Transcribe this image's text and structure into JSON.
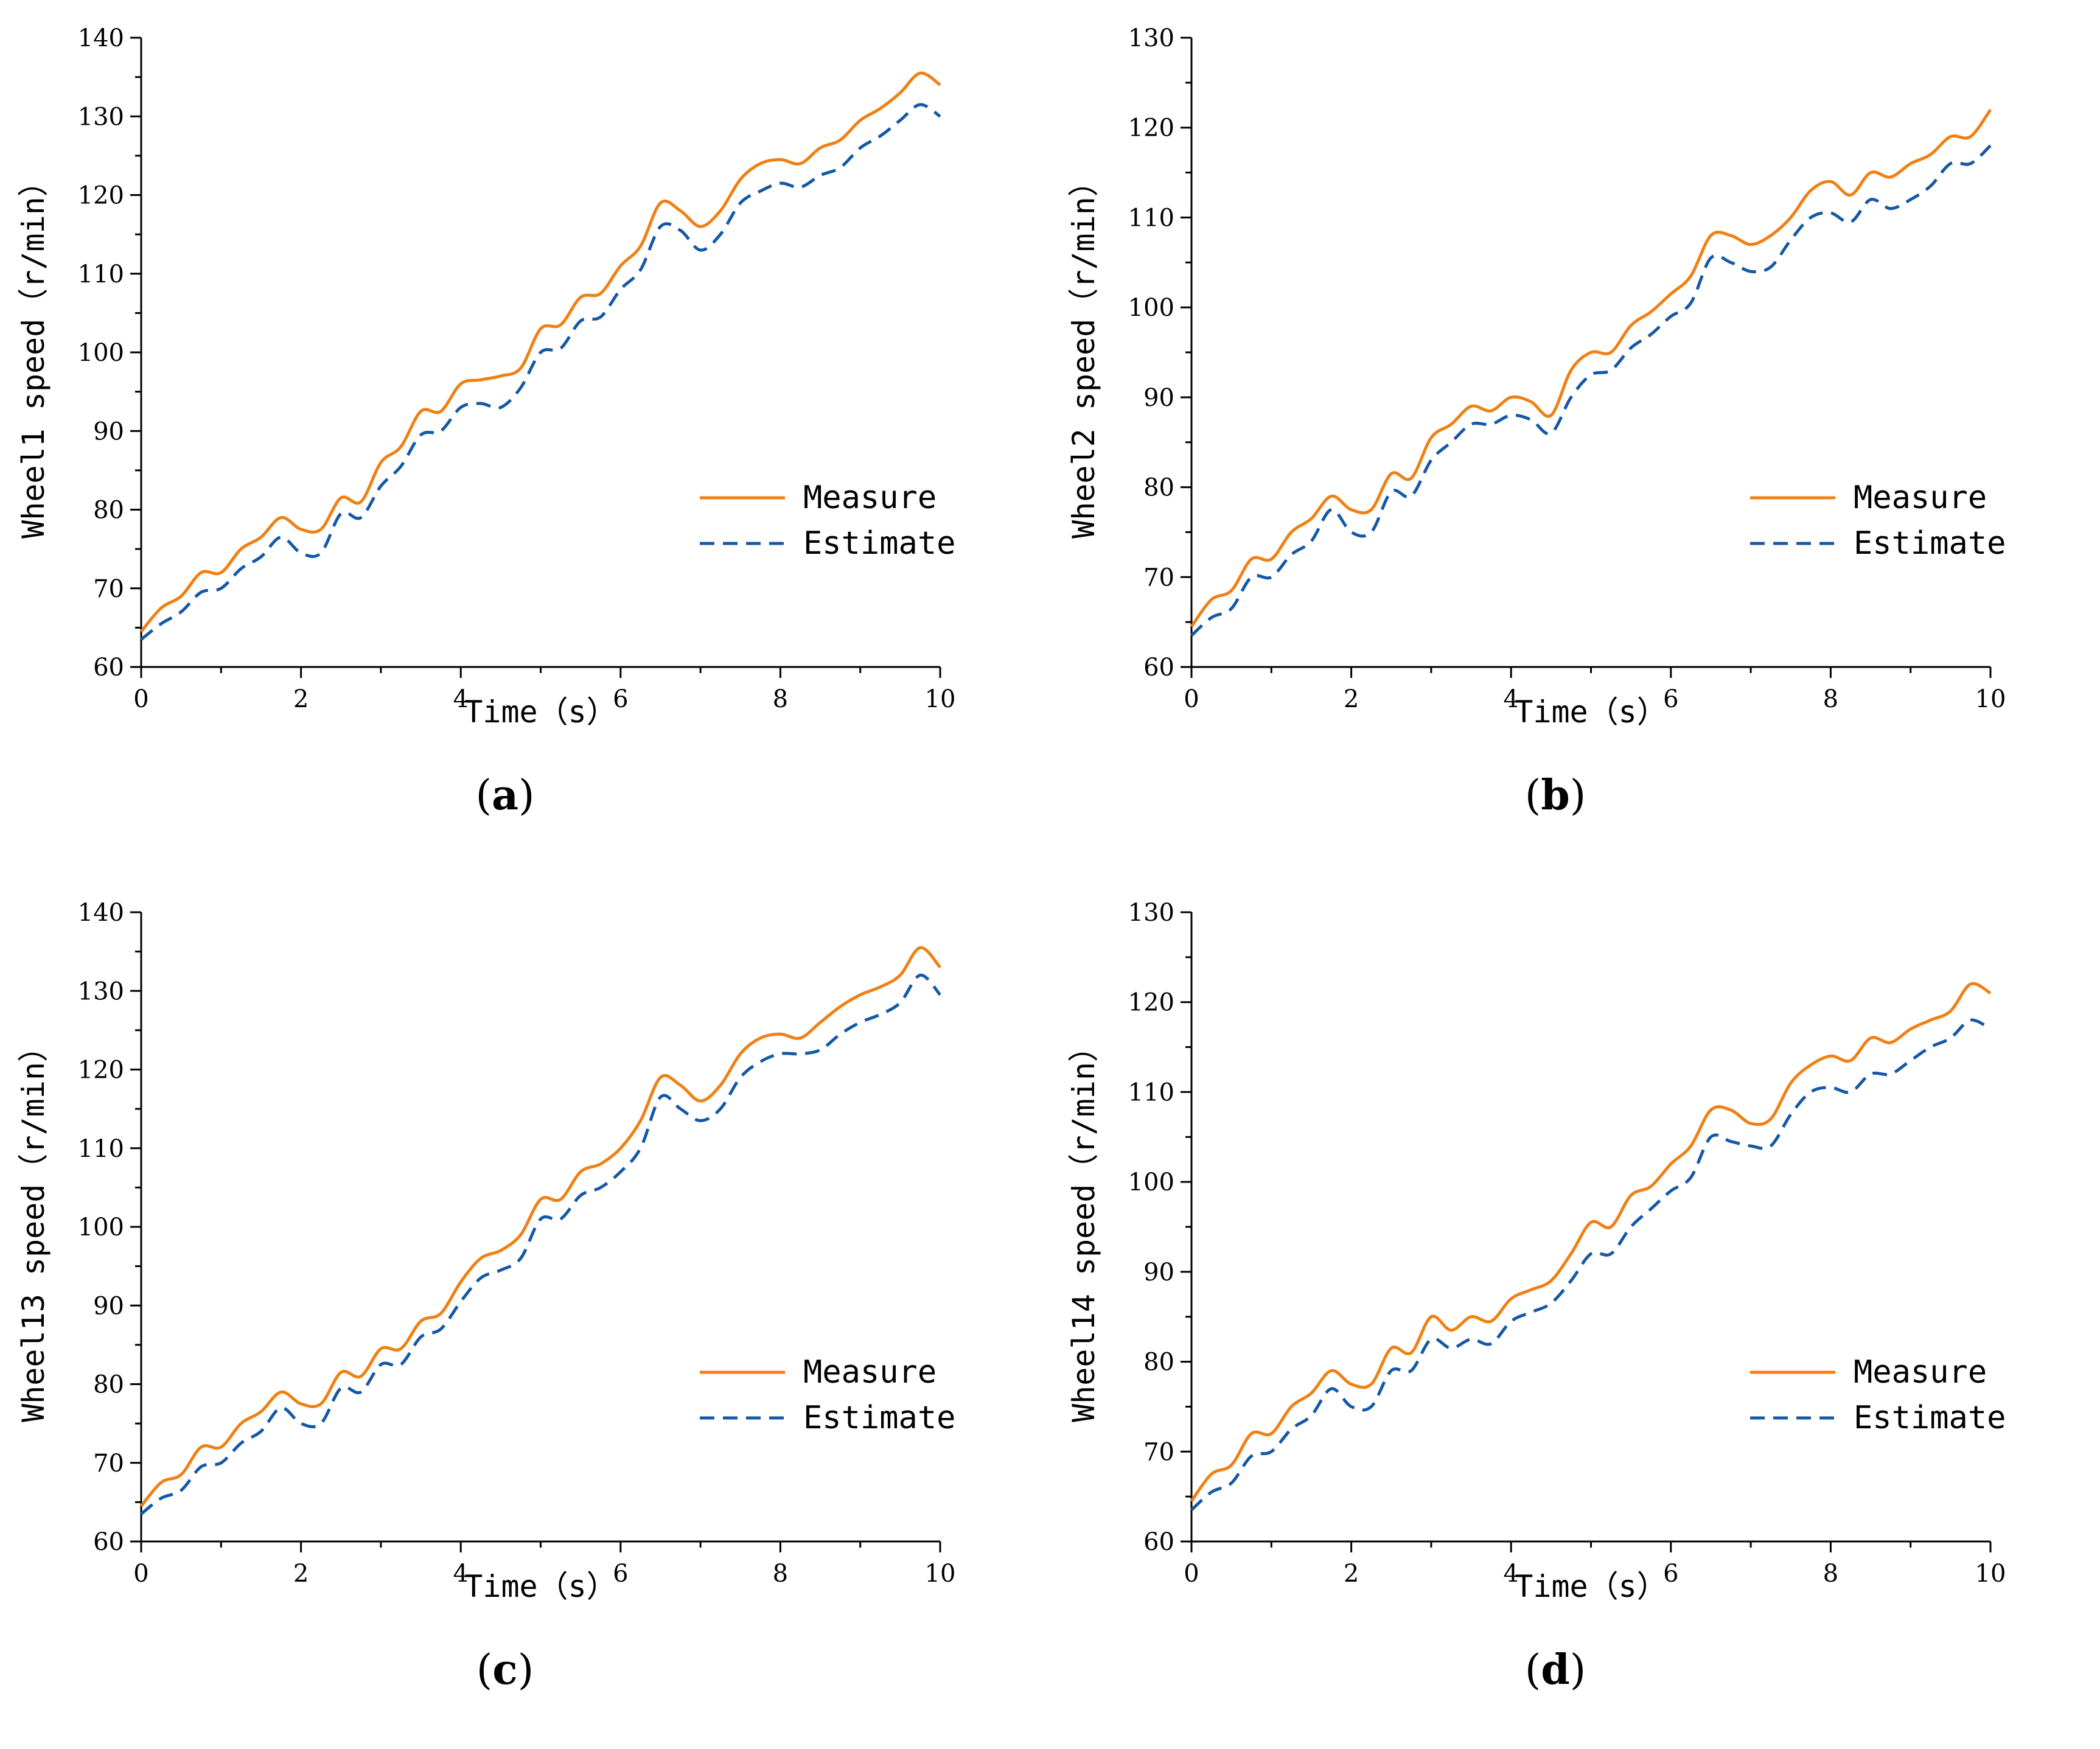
{
  "colors": {
    "measure": "#f08013",
    "estimate": "#1458a6"
  },
  "chart_data": [
    {
      "type": "line",
      "panel": "(a)",
      "caption_letter": "a",
      "xlabel": "Time（s）",
      "ylabel": "Wheel1 speed（r/min）",
      "xlim": [
        0,
        10
      ],
      "ylim": [
        60,
        140
      ],
      "xticks": [
        "0",
        "2",
        "4",
        "6",
        "8",
        "10"
      ],
      "yticks": [
        "60",
        "70",
        "80",
        "90",
        "100",
        "110",
        "120",
        "130",
        "140"
      ],
      "legend": [
        "Measure",
        "Estimate"
      ],
      "legend_position": "lower-right",
      "series": [
        {
          "name": "Measure",
          "style": "solid",
          "x": [
            0,
            0.25,
            0.5,
            0.75,
            1,
            1.25,
            1.5,
            1.75,
            2,
            2.25,
            2.5,
            2.75,
            3,
            3.25,
            3.5,
            3.75,
            4,
            4.25,
            4.5,
            4.75,
            5,
            5.25,
            5.5,
            5.75,
            6,
            6.25,
            6.5,
            6.75,
            7,
            7.25,
            7.5,
            7.75,
            8,
            8.25,
            8.5,
            8.75,
            9,
            9.25,
            9.5,
            9.75,
            10
          ],
          "values": [
            64.5,
            67.5,
            69,
            72,
            72,
            75,
            76.5,
            79,
            77.5,
            77.5,
            81.5,
            81,
            86,
            88,
            92.5,
            92.5,
            96,
            96.5,
            97,
            98,
            103,
            103.5,
            107,
            107.5,
            111,
            113.5,
            119,
            118,
            116,
            118,
            122,
            124,
            124.5,
            124,
            126,
            127,
            129.5,
            131,
            133,
            135.5,
            134
          ]
        },
        {
          "name": "Estimate",
          "style": "dashed",
          "x": [
            0,
            0.25,
            0.5,
            0.75,
            1,
            1.25,
            1.5,
            1.75,
            2,
            2.25,
            2.5,
            2.75,
            3,
            3.25,
            3.5,
            3.75,
            4,
            4.25,
            4.5,
            4.75,
            5,
            5.25,
            5.5,
            5.75,
            6,
            6.25,
            6.5,
            6.75,
            7,
            7.25,
            7.5,
            7.75,
            8,
            8.25,
            8.5,
            8.75,
            9,
            9.25,
            9.5,
            9.75,
            10
          ],
          "values": [
            63.5,
            65.5,
            67,
            69.5,
            70,
            72.5,
            74,
            76.5,
            74.5,
            74.5,
            79.5,
            79,
            83,
            85.5,
            89.5,
            90,
            93,
            93.5,
            93,
            95.5,
            100,
            100.5,
            104,
            104.5,
            108,
            110.5,
            116,
            115.5,
            113,
            115,
            119,
            120.5,
            121.5,
            121,
            122.5,
            123.5,
            126,
            127.5,
            129.5,
            131.5,
            130
          ]
        }
      ]
    },
    {
      "type": "line",
      "panel": "(b)",
      "caption_letter": "b",
      "xlabel": "Time（s）",
      "ylabel": "Wheel2 speed（r/min）",
      "xlim": [
        0,
        10
      ],
      "ylim": [
        60,
        130
      ],
      "xticks": [
        "0",
        "2",
        "4",
        "6",
        "8",
        "10"
      ],
      "yticks": [
        "60",
        "70",
        "80",
        "90",
        "100",
        "110",
        "120",
        "130"
      ],
      "legend": [
        "Measure",
        "Estimate"
      ],
      "legend_position": "lower-right",
      "series": [
        {
          "name": "Measure",
          "style": "solid",
          "x": [
            0,
            0.25,
            0.5,
            0.75,
            1,
            1.25,
            1.5,
            1.75,
            2,
            2.25,
            2.5,
            2.75,
            3,
            3.25,
            3.5,
            3.75,
            4,
            4.25,
            4.5,
            4.75,
            5,
            5.25,
            5.5,
            5.75,
            6,
            6.25,
            6.5,
            6.75,
            7,
            7.25,
            7.5,
            7.75,
            8,
            8.25,
            8.5,
            8.75,
            9,
            9.25,
            9.5,
            9.75,
            10
          ],
          "values": [
            64.5,
            67.5,
            68.5,
            72,
            72,
            75,
            76.5,
            79,
            77.5,
            77.5,
            81.5,
            81,
            85.5,
            87,
            89,
            88.5,
            90,
            89.5,
            88,
            93,
            95,
            95,
            98,
            99.5,
            101.5,
            103.5,
            108,
            108,
            107,
            108,
            110,
            113,
            114,
            112.5,
            115,
            114.5,
            116,
            117,
            119,
            119,
            122
          ]
        },
        {
          "name": "Estimate",
          "style": "dashed",
          "x": [
            0,
            0.25,
            0.5,
            0.75,
            1,
            1.25,
            1.5,
            1.75,
            2,
            2.25,
            2.5,
            2.75,
            3,
            3.25,
            3.5,
            3.75,
            4,
            4.25,
            4.5,
            4.75,
            5,
            5.25,
            5.5,
            5.75,
            6,
            6.25,
            6.5,
            6.75,
            7,
            7.25,
            7.5,
            7.75,
            8,
            8.25,
            8.5,
            8.75,
            9,
            9.25,
            9.5,
            9.75,
            10
          ],
          "values": [
            63.5,
            65.5,
            66.5,
            70,
            70,
            72.5,
            74,
            77.5,
            75,
            75,
            79.5,
            79,
            83,
            85,
            87,
            87,
            88,
            87.5,
            86,
            90,
            92.5,
            93,
            95.5,
            97,
            99,
            100.5,
            105.5,
            105,
            104,
            104.5,
            107.5,
            110,
            110.5,
            109.5,
            112,
            111,
            112,
            113.5,
            116,
            116,
            118
          ]
        }
      ]
    },
    {
      "type": "line",
      "panel": "(c)",
      "caption_letter": "c",
      "xlabel": "Time（s）",
      "ylabel": "Wheel13 speed（r/min）",
      "xlim": [
        0,
        10
      ],
      "ylim": [
        60,
        140
      ],
      "xticks": [
        "0",
        "2",
        "4",
        "6",
        "8",
        "10"
      ],
      "yticks": [
        "60",
        "70",
        "80",
        "90",
        "100",
        "110",
        "120",
        "130",
        "140"
      ],
      "legend": [
        "Measure",
        "Estimate"
      ],
      "legend_position": "lower-right",
      "series": [
        {
          "name": "Measure",
          "style": "solid",
          "x": [
            0,
            0.25,
            0.5,
            0.75,
            1,
            1.25,
            1.5,
            1.75,
            2,
            2.25,
            2.5,
            2.75,
            3,
            3.25,
            3.5,
            3.75,
            4,
            4.25,
            4.5,
            4.75,
            5,
            5.25,
            5.5,
            5.75,
            6,
            6.25,
            6.5,
            6.75,
            7,
            7.25,
            7.5,
            7.75,
            8,
            8.25,
            8.5,
            8.75,
            9,
            9.25,
            9.5,
            9.75,
            10
          ],
          "values": [
            64.5,
            67.5,
            68.5,
            72,
            72,
            75,
            76.5,
            79,
            77.5,
            77.5,
            81.5,
            81,
            84.5,
            84.5,
            88,
            89,
            93,
            96,
            97,
            99,
            103.5,
            103.5,
            107,
            108,
            110,
            113.5,
            119,
            118,
            116,
            118,
            122,
            124,
            124.5,
            124,
            126,
            128,
            129.5,
            130.5,
            132,
            135.5,
            133
          ]
        },
        {
          "name": "Estimate",
          "style": "dashed",
          "x": [
            0,
            0.25,
            0.5,
            0.75,
            1,
            1.25,
            1.5,
            1.75,
            2,
            2.25,
            2.5,
            2.75,
            3,
            3.25,
            3.5,
            3.75,
            4,
            4.25,
            4.5,
            4.75,
            5,
            5.25,
            5.5,
            5.75,
            6,
            6.25,
            6.5,
            6.75,
            7,
            7.25,
            7.5,
            7.75,
            8,
            8.25,
            8.5,
            8.75,
            9,
            9.25,
            9.5,
            9.75,
            10
          ],
          "values": [
            63.5,
            65.5,
            66.5,
            69.5,
            70,
            72.5,
            74,
            77,
            75,
            75,
            79.5,
            79,
            82.5,
            82.5,
            86,
            87,
            90.5,
            93.5,
            94.5,
            96,
            101,
            101,
            104,
            105,
            107,
            110,
            116.5,
            115,
            113.5,
            115,
            119,
            121,
            122,
            122,
            122.5,
            124.5,
            126,
            127,
            128.5,
            132,
            129.5
          ]
        }
      ]
    },
    {
      "type": "line",
      "panel": "(d)",
      "caption_letter": "d",
      "xlabel": "Time（s）",
      "ylabel": "Wheel14 speed（r/min）",
      "xlim": [
        0,
        10
      ],
      "ylim": [
        60,
        130
      ],
      "xticks": [
        "0",
        "2",
        "4",
        "6",
        "8",
        "10"
      ],
      "yticks": [
        "60",
        "70",
        "80",
        "90",
        "100",
        "110",
        "120",
        "130"
      ],
      "legend": [
        "Measure",
        "Estimate"
      ],
      "legend_position": "lower-right",
      "series": [
        {
          "name": "Measure",
          "style": "solid",
          "x": [
            0,
            0.25,
            0.5,
            0.75,
            1,
            1.25,
            1.5,
            1.75,
            2,
            2.25,
            2.5,
            2.75,
            3,
            3.25,
            3.5,
            3.75,
            4,
            4.25,
            4.5,
            4.75,
            5,
            5.25,
            5.5,
            5.75,
            6,
            6.25,
            6.5,
            6.75,
            7,
            7.25,
            7.5,
            7.75,
            8,
            8.25,
            8.5,
            8.75,
            9,
            9.25,
            9.5,
            9.75,
            10
          ],
          "values": [
            64.5,
            67.5,
            68.5,
            72,
            72,
            75,
            76.5,
            79,
            77.5,
            77.5,
            81.5,
            81,
            85,
            83.5,
            85,
            84.5,
            87,
            88,
            89,
            92,
            95.5,
            95,
            98.5,
            99.5,
            102,
            104,
            108,
            108,
            106.5,
            107,
            111,
            113,
            114,
            113.5,
            116,
            115.5,
            117,
            118,
            119,
            122,
            121
          ]
        },
        {
          "name": "Estimate",
          "style": "dashed",
          "x": [
            0,
            0.25,
            0.5,
            0.75,
            1,
            1.25,
            1.5,
            1.75,
            2,
            2.25,
            2.5,
            2.75,
            3,
            3.25,
            3.5,
            3.75,
            4,
            4.25,
            4.5,
            4.75,
            5,
            5.25,
            5.5,
            5.75,
            6,
            6.25,
            6.5,
            6.75,
            7,
            7.25,
            7.5,
            7.75,
            8,
            8.25,
            8.5,
            8.75,
            9,
            9.25,
            9.5,
            9.75,
            10
          ],
          "values": [
            63.5,
            65.5,
            66.5,
            69.5,
            70,
            72.5,
            74,
            77,
            75,
            75,
            79,
            79,
            82.5,
            81.5,
            82.5,
            82,
            84.5,
            85.5,
            86.5,
            89,
            92,
            92,
            95,
            97,
            99,
            100.5,
            105,
            104.5,
            104,
            104,
            107.5,
            110,
            110.5,
            110,
            112,
            112,
            113.5,
            115,
            116,
            118,
            117
          ]
        }
      ]
    }
  ]
}
